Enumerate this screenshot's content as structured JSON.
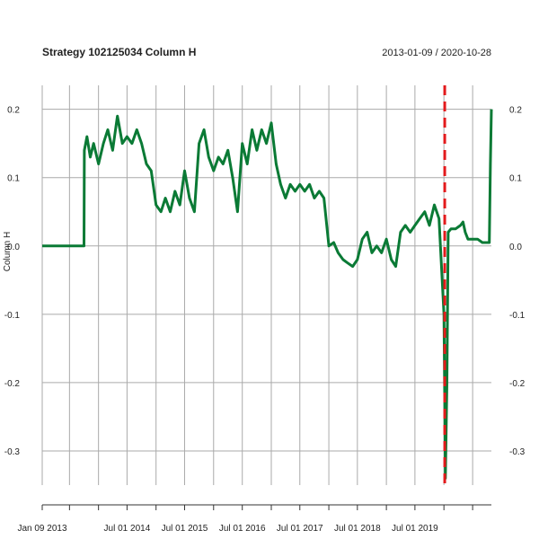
{
  "chart_data": {
    "type": "line",
    "title": "Strategy 102125034 Column H",
    "date_range": "2013-01-09 / 2020-10-28",
    "ylabel": "Column H",
    "xlabel": "",
    "xlim": [
      "2013-01-09",
      "2020-10-28"
    ],
    "ylim": [
      -0.35,
      0.235
    ],
    "y_ticks": [
      0.2,
      0.1,
      0.0,
      -0.1,
      -0.2,
      -0.3
    ],
    "y_tick_labels": [
      "0.2",
      "0.1",
      "0.0",
      "-0.1",
      "-0.2",
      "-0.3"
    ],
    "x_tick_labels": [
      {
        "date": "2013-01-09",
        "label": "Jan 09 2013"
      },
      {
        "date": "2014-07-01",
        "label": "Jul 01 2014"
      },
      {
        "date": "2015-07-01",
        "label": "Jul 01 2015"
      },
      {
        "date": "2016-07-01",
        "label": "Jul 01 2016"
      },
      {
        "date": "2017-07-01",
        "label": "Jul 01 2017"
      },
      {
        "date": "2018-07-01",
        "label": "Jul 01 2018"
      },
      {
        "date": "2019-07-01",
        "label": "Jul 01 2019"
      }
    ],
    "x_gridlines": [
      "2013-01-09",
      "2013-07-01",
      "2014-01-01",
      "2014-07-01",
      "2015-01-01",
      "2015-07-01",
      "2016-01-01",
      "2016-07-01",
      "2017-01-01",
      "2017-07-01",
      "2018-01-01",
      "2018-07-01",
      "2019-01-01",
      "2019-07-01",
      "2020-01-01",
      "2020-07-01"
    ],
    "grid": true,
    "vline": {
      "date": "2020-01-06",
      "color": "#e31a1c",
      "style": "dashed"
    },
    "series": [
      {
        "color": "#0a7a35",
        "points": [
          [
            "2013-01-09",
            0.0
          ],
          [
            "2013-10-01",
            0.0
          ],
          [
            "2013-10-03",
            0.14
          ],
          [
            "2013-10-20",
            0.16
          ],
          [
            "2013-11-10",
            0.13
          ],
          [
            "2013-12-01",
            0.15
          ],
          [
            "2014-01-01",
            0.12
          ],
          [
            "2014-02-01",
            0.15
          ],
          [
            "2014-03-01",
            0.17
          ],
          [
            "2014-04-01",
            0.14
          ],
          [
            "2014-05-01",
            0.19
          ],
          [
            "2014-06-01",
            0.15
          ],
          [
            "2014-07-01",
            0.16
          ],
          [
            "2014-08-01",
            0.15
          ],
          [
            "2014-09-01",
            0.17
          ],
          [
            "2014-10-01",
            0.15
          ],
          [
            "2014-11-01",
            0.12
          ],
          [
            "2014-12-01",
            0.11
          ],
          [
            "2015-01-01",
            0.06
          ],
          [
            "2015-02-01",
            0.05
          ],
          [
            "2015-03-01",
            0.07
          ],
          [
            "2015-04-01",
            0.05
          ],
          [
            "2015-05-01",
            0.08
          ],
          [
            "2015-06-01",
            0.06
          ],
          [
            "2015-07-01",
            0.11
          ],
          [
            "2015-08-01",
            0.07
          ],
          [
            "2015-09-01",
            0.05
          ],
          [
            "2015-10-01",
            0.15
          ],
          [
            "2015-11-01",
            0.17
          ],
          [
            "2015-12-01",
            0.13
          ],
          [
            "2016-01-01",
            0.11
          ],
          [
            "2016-02-01",
            0.13
          ],
          [
            "2016-03-01",
            0.12
          ],
          [
            "2016-04-01",
            0.14
          ],
          [
            "2016-05-01",
            0.1
          ],
          [
            "2016-06-01",
            0.05
          ],
          [
            "2016-07-01",
            0.15
          ],
          [
            "2016-08-01",
            0.12
          ],
          [
            "2016-09-01",
            0.17
          ],
          [
            "2016-10-01",
            0.14
          ],
          [
            "2016-11-01",
            0.17
          ],
          [
            "2016-12-01",
            0.15
          ],
          [
            "2017-01-01",
            0.18
          ],
          [
            "2017-02-01",
            0.12
          ],
          [
            "2017-03-01",
            0.09
          ],
          [
            "2017-04-01",
            0.07
          ],
          [
            "2017-05-01",
            0.09
          ],
          [
            "2017-06-01",
            0.08
          ],
          [
            "2017-07-01",
            0.09
          ],
          [
            "2017-08-01",
            0.08
          ],
          [
            "2017-09-01",
            0.09
          ],
          [
            "2017-10-01",
            0.07
          ],
          [
            "2017-11-01",
            0.08
          ],
          [
            "2017-12-01",
            0.07
          ],
          [
            "2018-01-01",
            0.0
          ],
          [
            "2018-02-01",
            0.005
          ],
          [
            "2018-03-01",
            -0.01
          ],
          [
            "2018-04-01",
            -0.02
          ],
          [
            "2018-05-01",
            -0.025
          ],
          [
            "2018-06-01",
            -0.03
          ],
          [
            "2018-07-01",
            -0.02
          ],
          [
            "2018-08-01",
            0.01
          ],
          [
            "2018-09-01",
            0.02
          ],
          [
            "2018-10-01",
            -0.01
          ],
          [
            "2018-11-01",
            0.0
          ],
          [
            "2018-12-01",
            -0.01
          ],
          [
            "2019-01-01",
            0.01
          ],
          [
            "2019-02-01",
            -0.02
          ],
          [
            "2019-03-01",
            -0.03
          ],
          [
            "2019-04-01",
            0.02
          ],
          [
            "2019-05-01",
            0.03
          ],
          [
            "2019-06-01",
            0.02
          ],
          [
            "2019-07-01",
            0.03
          ],
          [
            "2019-08-01",
            0.04
          ],
          [
            "2019-09-01",
            0.05
          ],
          [
            "2019-10-01",
            0.03
          ],
          [
            "2019-11-01",
            0.06
          ],
          [
            "2019-12-01",
            0.04
          ],
          [
            "2020-01-01",
            -0.1
          ],
          [
            "2020-01-10",
            -0.34
          ],
          [
            "2020-01-20",
            -0.2
          ],
          [
            "2020-01-28",
            0.02
          ],
          [
            "2020-02-15",
            0.025
          ],
          [
            "2020-03-15",
            0.025
          ],
          [
            "2020-04-15",
            0.03
          ],
          [
            "2020-05-01",
            0.035
          ],
          [
            "2020-05-15",
            0.02
          ],
          [
            "2020-06-01",
            0.01
          ],
          [
            "2020-07-01",
            0.01
          ],
          [
            "2020-08-01",
            0.01
          ],
          [
            "2020-09-01",
            0.005
          ],
          [
            "2020-10-15",
            0.005
          ],
          [
            "2020-10-22",
            0.12
          ],
          [
            "2020-10-28",
            0.2
          ]
        ]
      }
    ]
  }
}
